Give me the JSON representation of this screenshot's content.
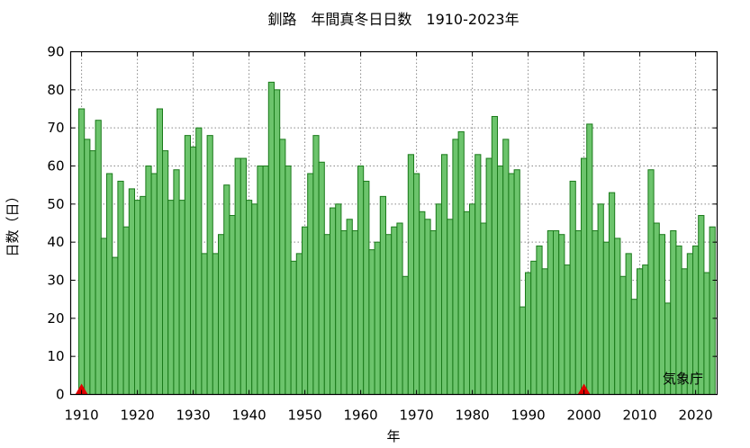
{
  "chart_data": {
    "type": "bar",
    "title": "釧路　年間真冬日日数　1910-2023年",
    "xlabel": "年",
    "ylabel": "日数（日）",
    "credit": "気象庁",
    "ylim": [
      0,
      90
    ],
    "yticks": [
      0,
      10,
      20,
      30,
      40,
      50,
      60,
      70,
      80,
      90
    ],
    "xticks": [
      1910,
      1920,
      1930,
      1940,
      1950,
      1960,
      1970,
      1980,
      1990,
      2000,
      2010,
      2020
    ],
    "grid": true,
    "start_year": 1910,
    "end_year": 2023,
    "markers": [
      1910,
      2000
    ],
    "colors": {
      "bar_fill": "#6cc46c",
      "bar_edge": "#1a7a1a",
      "marker": "#e00000"
    },
    "series": [
      {
        "values": [
          75,
          67,
          64,
          72,
          41,
          58,
          36,
          56,
          44,
          54,
          51,
          52,
          60,
          58,
          75,
          64,
          51,
          59,
          51,
          68,
          65,
          70,
          37,
          68,
          37,
          42,
          55,
          47,
          62,
          62,
          51,
          50,
          60,
          60,
          82,
          80,
          67,
          60,
          35,
          37,
          44,
          58,
          68,
          61,
          42,
          49,
          50,
          43,
          46,
          43,
          60,
          56,
          38,
          40,
          52,
          42,
          44,
          45,
          31,
          63,
          58,
          48,
          46,
          43,
          50,
          63,
          46,
          67,
          69,
          48,
          50,
          63,
          45,
          62,
          73,
          60,
          67,
          58,
          59,
          23,
          32,
          35,
          39,
          33,
          43,
          43,
          42,
          34,
          56,
          43,
          62,
          71,
          43,
          50,
          40,
          53,
          41,
          31,
          37,
          25,
          33,
          34,
          59,
          45,
          42,
          24,
          43,
          39,
          33,
          37,
          39,
          47,
          32,
          44
        ]
      }
    ]
  }
}
